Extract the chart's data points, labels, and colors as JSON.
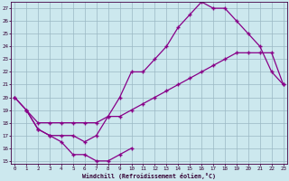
{
  "xlabel": "Windchill (Refroidissement éolien,°C)",
  "bg_color": "#cce8ee",
  "line_color": "#880088",
  "xlim": [
    -0.3,
    23.3
  ],
  "ylim": [
    14.8,
    27.5
  ],
  "yticks": [
    15,
    16,
    17,
    18,
    19,
    20,
    21,
    22,
    23,
    24,
    25,
    26,
    27
  ],
  "xticks": [
    0,
    1,
    2,
    3,
    4,
    5,
    6,
    7,
    8,
    9,
    10,
    11,
    12,
    13,
    14,
    15,
    16,
    17,
    18,
    19,
    20,
    21,
    22,
    23
  ],
  "line1_x": [
    0,
    1,
    2,
    3,
    4,
    5,
    6,
    7,
    8,
    9,
    10
  ],
  "line1_y": [
    20.0,
    19.0,
    17.5,
    17.0,
    16.5,
    15.5,
    15.5,
    15.0,
    15.0,
    15.5,
    16.0
  ],
  "line2_x": [
    1,
    2,
    3,
    4,
    5,
    6,
    7,
    8,
    9,
    10,
    11,
    12,
    13,
    14,
    15,
    16,
    17,
    18,
    19,
    20,
    21,
    22,
    23
  ],
  "line2_y": [
    19.0,
    18.0,
    18.0,
    18.0,
    18.0,
    18.0,
    18.0,
    18.5,
    18.5,
    19.0,
    19.5,
    20.0,
    20.5,
    21.0,
    21.5,
    22.0,
    22.5,
    23.0,
    23.5,
    23.5,
    23.5,
    23.5,
    21.0
  ],
  "line3_x": [
    0,
    1,
    2,
    3,
    4,
    5,
    6,
    7,
    8,
    9,
    10,
    11,
    12,
    13,
    14,
    15,
    16,
    17,
    18,
    19,
    20,
    21,
    22,
    23
  ],
  "line3_y": [
    20.0,
    19.0,
    17.5,
    17.0,
    17.0,
    17.0,
    16.5,
    17.0,
    18.5,
    20.0,
    22.0,
    22.0,
    23.0,
    24.0,
    25.5,
    26.5,
    27.5,
    27.0,
    27.0,
    26.0,
    25.0,
    24.0,
    22.0,
    21.0
  ]
}
